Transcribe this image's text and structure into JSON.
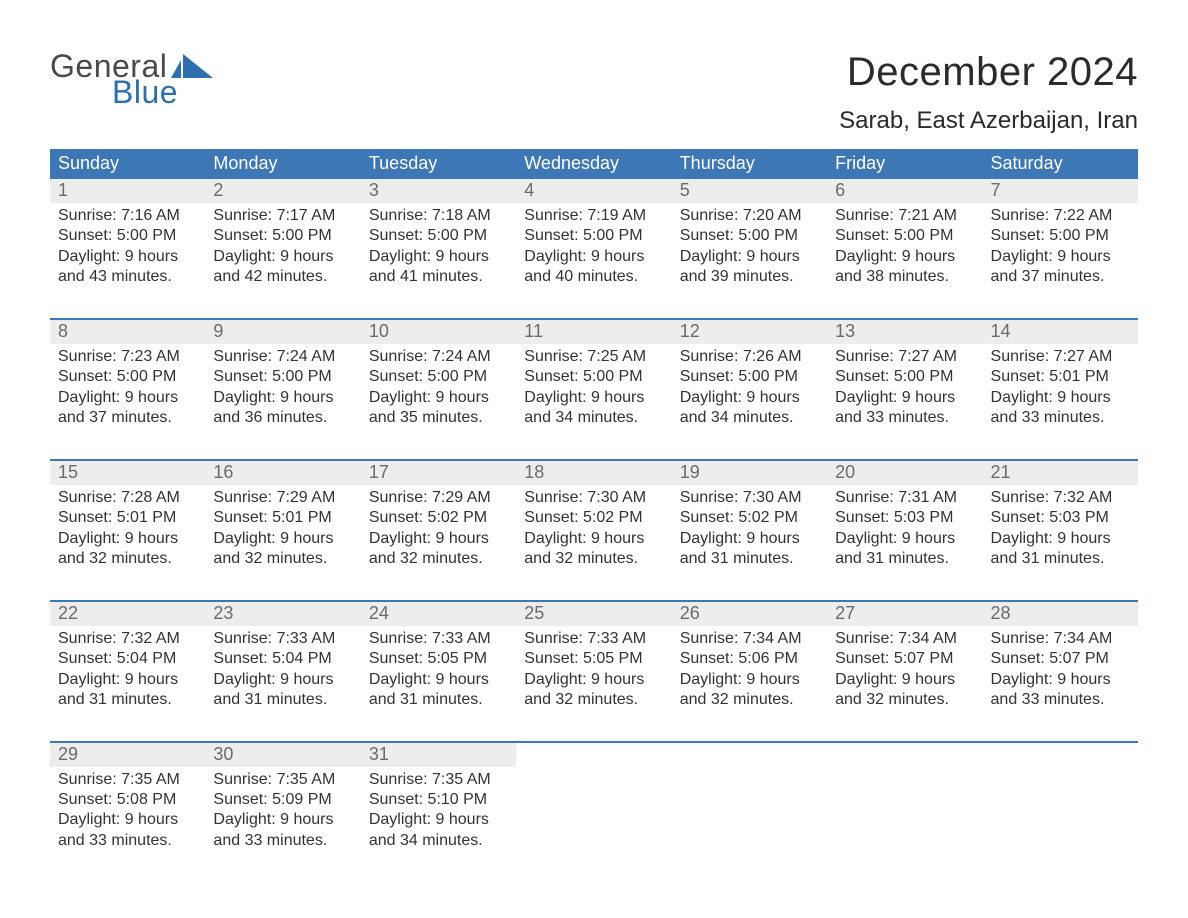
{
  "logo": {
    "word1": "General",
    "word2": "Blue",
    "flag_color": "#2f6fad"
  },
  "title": "December 2024",
  "location": "Sarab, East Azerbaijan, Iran",
  "colors": {
    "header_bg": "#3d77b5",
    "header_text": "#ffffff",
    "week_border": "#3d77b5",
    "daynum_bg": "#ededed",
    "daynum_text": "#6b6b6b",
    "body_text": "#333333",
    "page_bg": "#ffffff"
  },
  "typography": {
    "title_fontsize": 40,
    "location_fontsize": 24,
    "header_fontsize": 18,
    "daynum_fontsize": 18,
    "body_fontsize": 16,
    "font_family": "Arial"
  },
  "day_labels": [
    "Sunday",
    "Monday",
    "Tuesday",
    "Wednesday",
    "Thursday",
    "Friday",
    "Saturday"
  ],
  "line_prefixes": {
    "sunrise": "Sunrise: ",
    "sunset": "Sunset: ",
    "daylight": "Daylight: "
  },
  "weeks": [
    [
      {
        "n": 1,
        "sunrise": "7:16 AM",
        "sunset": "5:00 PM",
        "daylight": "9 hours and 43 minutes."
      },
      {
        "n": 2,
        "sunrise": "7:17 AM",
        "sunset": "5:00 PM",
        "daylight": "9 hours and 42 minutes."
      },
      {
        "n": 3,
        "sunrise": "7:18 AM",
        "sunset": "5:00 PM",
        "daylight": "9 hours and 41 minutes."
      },
      {
        "n": 4,
        "sunrise": "7:19 AM",
        "sunset": "5:00 PM",
        "daylight": "9 hours and 40 minutes."
      },
      {
        "n": 5,
        "sunrise": "7:20 AM",
        "sunset": "5:00 PM",
        "daylight": "9 hours and 39 minutes."
      },
      {
        "n": 6,
        "sunrise": "7:21 AM",
        "sunset": "5:00 PM",
        "daylight": "9 hours and 38 minutes."
      },
      {
        "n": 7,
        "sunrise": "7:22 AM",
        "sunset": "5:00 PM",
        "daylight": "9 hours and 37 minutes."
      }
    ],
    [
      {
        "n": 8,
        "sunrise": "7:23 AM",
        "sunset": "5:00 PM",
        "daylight": "9 hours and 37 minutes."
      },
      {
        "n": 9,
        "sunrise": "7:24 AM",
        "sunset": "5:00 PM",
        "daylight": "9 hours and 36 minutes."
      },
      {
        "n": 10,
        "sunrise": "7:24 AM",
        "sunset": "5:00 PM",
        "daylight": "9 hours and 35 minutes."
      },
      {
        "n": 11,
        "sunrise": "7:25 AM",
        "sunset": "5:00 PM",
        "daylight": "9 hours and 34 minutes."
      },
      {
        "n": 12,
        "sunrise": "7:26 AM",
        "sunset": "5:00 PM",
        "daylight": "9 hours and 34 minutes."
      },
      {
        "n": 13,
        "sunrise": "7:27 AM",
        "sunset": "5:00 PM",
        "daylight": "9 hours and 33 minutes."
      },
      {
        "n": 14,
        "sunrise": "7:27 AM",
        "sunset": "5:01 PM",
        "daylight": "9 hours and 33 minutes."
      }
    ],
    [
      {
        "n": 15,
        "sunrise": "7:28 AM",
        "sunset": "5:01 PM",
        "daylight": "9 hours and 32 minutes."
      },
      {
        "n": 16,
        "sunrise": "7:29 AM",
        "sunset": "5:01 PM",
        "daylight": "9 hours and 32 minutes."
      },
      {
        "n": 17,
        "sunrise": "7:29 AM",
        "sunset": "5:02 PM",
        "daylight": "9 hours and 32 minutes."
      },
      {
        "n": 18,
        "sunrise": "7:30 AM",
        "sunset": "5:02 PM",
        "daylight": "9 hours and 32 minutes."
      },
      {
        "n": 19,
        "sunrise": "7:30 AM",
        "sunset": "5:02 PM",
        "daylight": "9 hours and 31 minutes."
      },
      {
        "n": 20,
        "sunrise": "7:31 AM",
        "sunset": "5:03 PM",
        "daylight": "9 hours and 31 minutes."
      },
      {
        "n": 21,
        "sunrise": "7:32 AM",
        "sunset": "5:03 PM",
        "daylight": "9 hours and 31 minutes."
      }
    ],
    [
      {
        "n": 22,
        "sunrise": "7:32 AM",
        "sunset": "5:04 PM",
        "daylight": "9 hours and 31 minutes."
      },
      {
        "n": 23,
        "sunrise": "7:33 AM",
        "sunset": "5:04 PM",
        "daylight": "9 hours and 31 minutes."
      },
      {
        "n": 24,
        "sunrise": "7:33 AM",
        "sunset": "5:05 PM",
        "daylight": "9 hours and 31 minutes."
      },
      {
        "n": 25,
        "sunrise": "7:33 AM",
        "sunset": "5:05 PM",
        "daylight": "9 hours and 32 minutes."
      },
      {
        "n": 26,
        "sunrise": "7:34 AM",
        "sunset": "5:06 PM",
        "daylight": "9 hours and 32 minutes."
      },
      {
        "n": 27,
        "sunrise": "7:34 AM",
        "sunset": "5:07 PM",
        "daylight": "9 hours and 32 minutes."
      },
      {
        "n": 28,
        "sunrise": "7:34 AM",
        "sunset": "5:07 PM",
        "daylight": "9 hours and 33 minutes."
      }
    ],
    [
      {
        "n": 29,
        "sunrise": "7:35 AM",
        "sunset": "5:08 PM",
        "daylight": "9 hours and 33 minutes."
      },
      {
        "n": 30,
        "sunrise": "7:35 AM",
        "sunset": "5:09 PM",
        "daylight": "9 hours and 33 minutes."
      },
      {
        "n": 31,
        "sunrise": "7:35 AM",
        "sunset": "5:10 PM",
        "daylight": "9 hours and 34 minutes."
      },
      null,
      null,
      null,
      null
    ]
  ]
}
